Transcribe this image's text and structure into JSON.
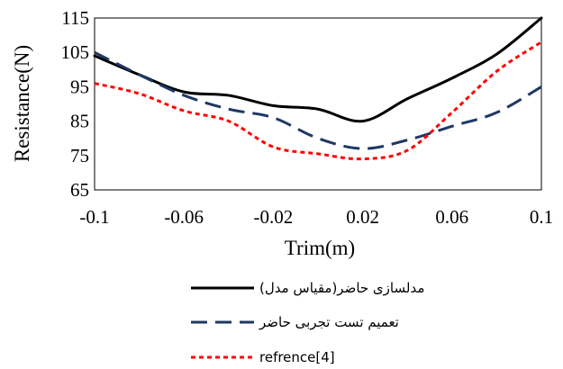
{
  "chart_data": {
    "type": "line",
    "xlabel": "Trim(m)",
    "ylabel": "Resistance(N)",
    "xlim": [
      -0.1,
      0.1
    ],
    "ylim": [
      65,
      115
    ],
    "x_ticks": [
      -0.1,
      -0.06,
      -0.02,
      0.02,
      0.06,
      0.1
    ],
    "x_tick_labels": [
      "-0.1",
      "-0.06",
      "-0.02",
      "0.02",
      "0.06",
      "0.1"
    ],
    "y_ticks": [
      65,
      75,
      85,
      95,
      105,
      115
    ],
    "y_tick_labels": [
      "65",
      "75",
      "85",
      "95",
      "105",
      "115"
    ],
    "grid": false,
    "legend_placement": "bottom",
    "series": [
      {
        "name": "مدلسازی حاضر(مقیاس مدل)",
        "color": "#000000",
        "style": "solid",
        "x": [
          -0.1,
          -0.08,
          -0.06,
          -0.04,
          -0.02,
          0.0,
          0.02,
          0.04,
          0.06,
          0.08,
          0.1
        ],
        "y": [
          104,
          98.5,
          93.5,
          92.5,
          89.5,
          88.5,
          85,
          91.5,
          97.5,
          104.5,
          115
        ]
      },
      {
        "name": "تعمیم تست تجربی حاضر",
        "color": "#1f3864",
        "style": "dash",
        "x": [
          -0.1,
          -0.08,
          -0.06,
          -0.04,
          -0.02,
          0.0,
          0.02,
          0.04,
          0.06,
          0.08,
          0.1
        ],
        "y": [
          105,
          98.5,
          92.5,
          88.5,
          86,
          80,
          77,
          79.5,
          83.5,
          87.5,
          95
        ]
      },
      {
        "name": "refrence[4]",
        "color": "#ff0000",
        "style": "dot",
        "x": [
          -0.1,
          -0.08,
          -0.06,
          -0.04,
          -0.02,
          0.0,
          0.02,
          0.04,
          0.06,
          0.08,
          0.1
        ],
        "y": [
          96,
          93,
          88,
          85,
          77.5,
          75.5,
          74,
          76.5,
          87.5,
          99.5,
          108
        ]
      }
    ]
  }
}
